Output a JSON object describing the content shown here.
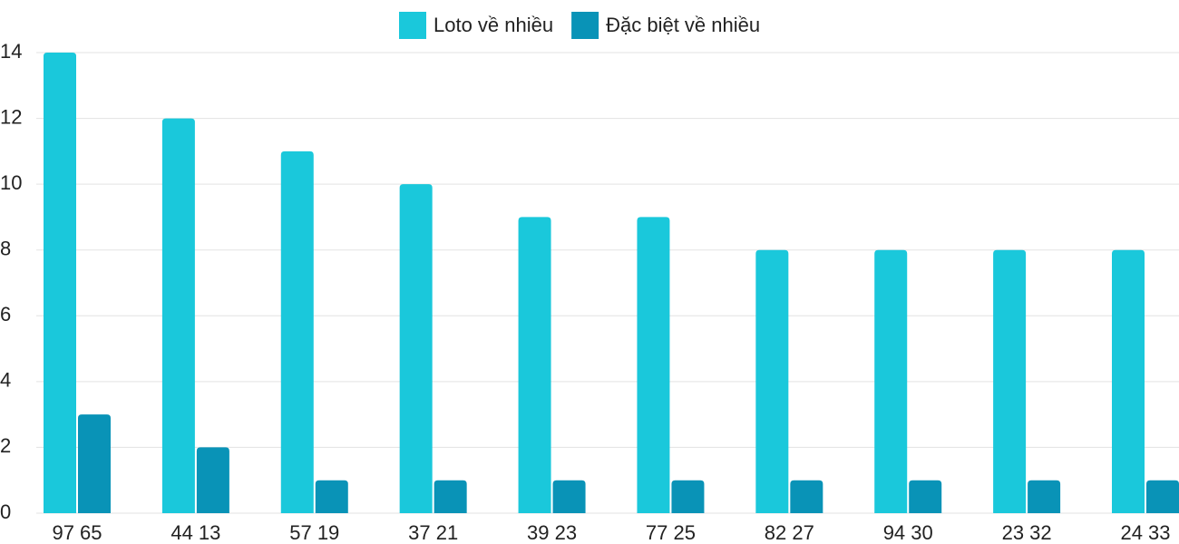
{
  "chart_data": {
    "type": "bar",
    "categories": [
      "97 65",
      "44 13",
      "57 19",
      "37 21",
      "39 23",
      "77 25",
      "82 27",
      "94 30",
      "23 32",
      "24 33"
    ],
    "series": [
      {
        "name": "Loto về nhiều",
        "color": "#1ac8db",
        "values": [
          14,
          12,
          11,
          10,
          9,
          9,
          8,
          8,
          8,
          8
        ]
      },
      {
        "name": "Đặc biệt về nhiều",
        "color": "#0993b7",
        "values": [
          3,
          2,
          1,
          1,
          1,
          1,
          1,
          1,
          1,
          1
        ]
      }
    ],
    "ylim": [
      0,
      14
    ],
    "yticks": [
      0,
      2,
      4,
      6,
      8,
      10,
      12,
      14
    ],
    "grid": true,
    "legend": "top"
  }
}
